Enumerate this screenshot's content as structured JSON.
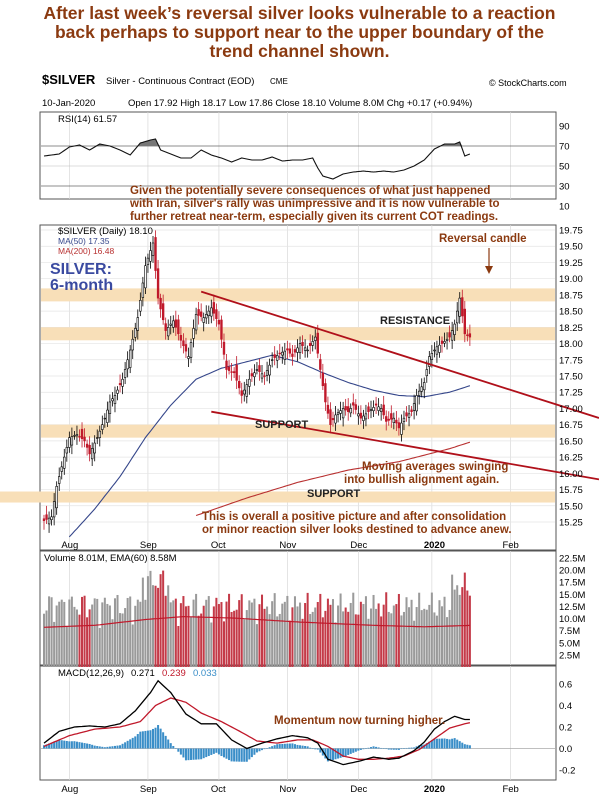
{
  "headline": {
    "lines": [
      "After last week’s reversal silver looks vulnerable to a reaction",
      "back perhaps to support near to the upper boundary of the",
      "trend channel shown."
    ]
  },
  "header": {
    "symbol": "$SILVER",
    "description": "Silver - Continuous Contract (EOD)",
    "exchange": "CME",
    "source": "© StockCharts.com",
    "date": "10-Jan-2020",
    "ohlc": "Open 17.92  High 18.17  Low 17.86  Close 18.10  Volume 8.0M  Chg +0.17 (+0.94%)",
    "ohlc_arrow": "▲"
  },
  "rsi_panel": {
    "label": "RSI(14) 61.57",
    "ticks": [
      "90",
      "70",
      "50",
      "30",
      "10"
    ]
  },
  "price_panel": {
    "legend_main": "$SILVER (Daily) 18.10",
    "legend_ma50": "MA(50) 17.35",
    "legend_ma200": "MA(200) 16.48",
    "tag_line1": "SILVER:",
    "tag_line2": "6-month",
    "ticks": [
      "19.75",
      "19.50",
      "19.25",
      "19.00",
      "18.75",
      "18.50",
      "18.25",
      "18.00",
      "17.75",
      "17.50",
      "17.25",
      "17.00",
      "16.75",
      "16.50",
      "16.25",
      "16.00",
      "15.75",
      "15.50",
      "15.25"
    ],
    "months": [
      "Aug",
      "Sep",
      "Oct",
      "Nov",
      "Dec",
      "2020",
      "Feb"
    ],
    "notes": {
      "rsi_comment": [
        "Given the potentially severe consequences of what just happened",
        "with Iran, silver's rally was unimpressive and it is now vulnerable to",
        "further retreat near-term, especially given its current COT readings."
      ],
      "reversal": "Reversal candle",
      "resistance": "RESISTANCE",
      "support1": "SUPPORT",
      "support2": "SUPPORT",
      "ma_comment": [
        "Moving averages swinging",
        "into bullish alignment again."
      ],
      "outlook": [
        "This is overall a positive picture and after consolidation",
        "or minor reaction silver looks destined to advance anew."
      ]
    }
  },
  "volume_panel": {
    "label": "Volume 8.01M, EMA(60) 8.58M",
    "ticks": [
      "22.5M",
      "20.0M",
      "17.5M",
      "15.0M",
      "12.5M",
      "10.0M",
      "7.5M",
      "5.0M",
      "2.5M"
    ]
  },
  "macd_panel": {
    "label_prefix": "MACD(12,26,9)",
    "label_v1": "0.271",
    "label_v2": "0.239",
    "label_v3": "0.033",
    "ticks": [
      "0.6",
      "0.4",
      "0.2",
      "0.0",
      "-0.2"
    ],
    "months": [
      "Aug",
      "Sep",
      "Oct",
      "Nov",
      "Dec",
      "2020",
      "Feb"
    ],
    "note": "Momentum now turning higher."
  },
  "colors": {
    "headline": "#8b3a10",
    "note": "#8b3a10",
    "channel": "#b0101a",
    "band": "#f8dfb8",
    "ma50": "#35468a",
    "ma200": "#b83030",
    "up": "#000000",
    "down": "#c0182a",
    "vol_up": "#9a9a9a",
    "vol_down": "#c43a48",
    "macd_hist": "#3a8ec8",
    "tag": "#3a4aa0"
  },
  "chart_data": {
    "type": "candlestick",
    "title": "$SILVER Silver - Continuous Contract (EOD)",
    "period": "Daily, ~6 months to 10-Jan-2020",
    "x_months": [
      "Aug",
      "Sep",
      "Oct",
      "Nov",
      "Dec",
      "2020",
      "Feb"
    ],
    "price_ylim": [
      15.0,
      19.85
    ],
    "close_path": [
      [
        0,
        15.27
      ],
      [
        3,
        15.33
      ],
      [
        5,
        15.8
      ],
      [
        8,
        16.25
      ],
      [
        10,
        16.55
      ],
      [
        13,
        16.6
      ],
      [
        16,
        16.5
      ],
      [
        18,
        16.3
      ],
      [
        21,
        16.55
      ],
      [
        24,
        16.85
      ],
      [
        26,
        17.1
      ],
      [
        28,
        17.2
      ],
      [
        31,
        17.45
      ],
      [
        34,
        17.9
      ],
      [
        37,
        18.4
      ],
      [
        40,
        19.2
      ],
      [
        43,
        19.55
      ],
      [
        45,
        18.7
      ],
      [
        48,
        18.2
      ],
      [
        51,
        18.35
      ],
      [
        54,
        18.05
      ],
      [
        57,
        17.8
      ],
      [
        60,
        18.45
      ],
      [
        63,
        18.4
      ],
      [
        66,
        18.55
      ],
      [
        69,
        18.3
      ],
      [
        72,
        17.6
      ],
      [
        75,
        17.55
      ],
      [
        78,
        17.2
      ],
      [
        81,
        17.45
      ],
      [
        84,
        17.6
      ],
      [
        87,
        17.5
      ],
      [
        90,
        17.75
      ],
      [
        93,
        17.85
      ],
      [
        96,
        17.9
      ],
      [
        98,
        17.8
      ],
      [
        101,
        18.0
      ],
      [
        104,
        17.9
      ],
      [
        107,
        18.1
      ],
      [
        109,
        17.6
      ],
      [
        111,
        17.1
      ],
      [
        113,
        16.75
      ],
      [
        115,
        16.9
      ],
      [
        118,
        17.0
      ],
      [
        120,
        16.95
      ],
      [
        122,
        17.05
      ],
      [
        125,
        16.85
      ],
      [
        128,
        16.95
      ],
      [
        131,
        17.05
      ],
      [
        133,
        17.0
      ],
      [
        135,
        16.8
      ],
      [
        138,
        16.85
      ],
      [
        140,
        16.7
      ],
      [
        142,
        16.85
      ],
      [
        145,
        16.95
      ],
      [
        147,
        17.2
      ],
      [
        150,
        17.4
      ],
      [
        152,
        17.8
      ],
      [
        155,
        17.95
      ],
      [
        157,
        18.0
      ],
      [
        160,
        18.1
      ],
      [
        162,
        18.3
      ],
      [
        164,
        18.7
      ],
      [
        166,
        18.15
      ],
      [
        168,
        18.1
      ]
    ],
    "ma50_path": [
      [
        10,
        15.02
      ],
      [
        20,
        15.45
      ],
      [
        30,
        15.95
      ],
      [
        40,
        16.55
      ],
      [
        50,
        17.05
      ],
      [
        60,
        17.45
      ],
      [
        70,
        17.62
      ],
      [
        80,
        17.72
      ],
      [
        90,
        17.82
      ],
      [
        100,
        17.72
      ],
      [
        110,
        17.55
      ],
      [
        120,
        17.4
      ],
      [
        130,
        17.28
      ],
      [
        140,
        17.2
      ],
      [
        150,
        17.18
      ],
      [
        160,
        17.25
      ],
      [
        168,
        17.35
      ]
    ],
    "ma200_path": [
      [
        60,
        15.35
      ],
      [
        80,
        15.62
      ],
      [
        100,
        15.86
      ],
      [
        120,
        16.05
      ],
      [
        140,
        16.18
      ],
      [
        160,
        16.38
      ],
      [
        168,
        16.48
      ]
    ],
    "reference_bands": [
      {
        "label": "RESISTANCE",
        "low": 18.05,
        "high": 18.25
      },
      {
        "label": "RESISTANCE",
        "low": 18.65,
        "high": 18.85
      },
      {
        "label": "SUPPORT",
        "low": 16.55,
        "high": 16.75
      },
      {
        "label": "SUPPORT",
        "low": 15.55,
        "high": 15.72
      }
    ],
    "channel_lines": [
      {
        "from": [
          62,
          18.8
        ],
        "to": [
          195,
          17.15
        ]
      },
      {
        "from": [
          66,
          16.95
        ],
        "to": [
          195,
          16.07
        ]
      }
    ],
    "rsi": {
      "label": "RSI(14) 61.57",
      "ylim": [
        10,
        90
      ],
      "levels": [
        70,
        30
      ],
      "path": [
        [
          0,
          60
        ],
        [
          6,
          62
        ],
        [
          10,
          69
        ],
        [
          14,
          71
        ],
        [
          18,
          66
        ],
        [
          22,
          72
        ],
        [
          26,
          70
        ],
        [
          30,
          66
        ],
        [
          34,
          61
        ],
        [
          38,
          73
        ],
        [
          42,
          76
        ],
        [
          44,
          77
        ],
        [
          46,
          66
        ],
        [
          50,
          62
        ],
        [
          54,
          58
        ],
        [
          58,
          58
        ],
        [
          62,
          66
        ],
        [
          66,
          61
        ],
        [
          70,
          58
        ],
        [
          74,
          54
        ],
        [
          78,
          58
        ],
        [
          82,
          56
        ],
        [
          86,
          56
        ],
        [
          90,
          59
        ],
        [
          94,
          55
        ],
        [
          98,
          56
        ],
        [
          102,
          56
        ],
        [
          106,
          58
        ],
        [
          108,
          48
        ],
        [
          110,
          40
        ],
        [
          114,
          37
        ],
        [
          118,
          42
        ],
        [
          122,
          44
        ],
        [
          126,
          45
        ],
        [
          130,
          44
        ],
        [
          134,
          45
        ],
        [
          138,
          44
        ],
        [
          142,
          46
        ],
        [
          146,
          50
        ],
        [
          150,
          56
        ],
        [
          154,
          67
        ],
        [
          158,
          72
        ],
        [
          162,
          72
        ],
        [
          164,
          74
        ],
        [
          166,
          60
        ],
        [
          168,
          62
        ]
      ]
    },
    "volume": {
      "label": "Volume 8.01M, EMA(60) 8.58M",
      "ylim": [
        0,
        22.5
      ],
      "ema_path": [
        [
          0,
          8.2
        ],
        [
          20,
          8.6
        ],
        [
          40,
          9.8
        ],
        [
          55,
          10.4
        ],
        [
          75,
          10.1
        ],
        [
          100,
          9.3
        ],
        [
          130,
          8.6
        ],
        [
          150,
          8.3
        ],
        [
          168,
          8.58
        ]
      ]
    },
    "macd": {
      "label": "MACD(12,26,9) 0.271, 0.239, 0.033",
      "ylim": [
        -0.25,
        0.75
      ],
      "macd_path": [
        [
          0,
          0.05
        ],
        [
          6,
          0.16
        ],
        [
          12,
          0.2
        ],
        [
          18,
          0.21
        ],
        [
          24,
          0.2
        ],
        [
          30,
          0.23
        ],
        [
          36,
          0.35
        ],
        [
          42,
          0.52
        ],
        [
          45,
          0.63
        ],
        [
          50,
          0.52
        ],
        [
          56,
          0.32
        ],
        [
          62,
          0.23
        ],
        [
          68,
          0.23
        ],
        [
          74,
          0.08
        ],
        [
          80,
          0.0
        ],
        [
          86,
          0.05
        ],
        [
          92,
          0.09
        ],
        [
          98,
          0.12
        ],
        [
          104,
          0.1
        ],
        [
          108,
          0.05
        ],
        [
          112,
          -0.1
        ],
        [
          118,
          -0.15
        ],
        [
          124,
          -0.12
        ],
        [
          130,
          -0.08
        ],
        [
          136,
          -0.1
        ],
        [
          140,
          -0.09
        ],
        [
          146,
          -0.02
        ],
        [
          150,
          0.06
        ],
        [
          154,
          0.18
        ],
        [
          158,
          0.25
        ],
        [
          162,
          0.3
        ],
        [
          166,
          0.27
        ],
        [
          168,
          0.27
        ]
      ],
      "signal_path": [
        [
          0,
          0.02
        ],
        [
          10,
          0.12
        ],
        [
          20,
          0.18
        ],
        [
          30,
          0.2
        ],
        [
          38,
          0.25
        ],
        [
          44,
          0.4
        ],
        [
          50,
          0.47
        ],
        [
          56,
          0.43
        ],
        [
          62,
          0.33
        ],
        [
          70,
          0.25
        ],
        [
          78,
          0.15
        ],
        [
          84,
          0.07
        ],
        [
          92,
          0.05
        ],
        [
          100,
          0.08
        ],
        [
          106,
          0.08
        ],
        [
          112,
          0.02
        ],
        [
          118,
          -0.07
        ],
        [
          124,
          -0.1
        ],
        [
          130,
          -0.1
        ],
        [
          136,
          -0.09
        ],
        [
          142,
          -0.07
        ],
        [
          148,
          -0.01
        ],
        [
          154,
          0.09
        ],
        [
          160,
          0.19
        ],
        [
          166,
          0.23
        ],
        [
          168,
          0.24
        ]
      ]
    }
  }
}
